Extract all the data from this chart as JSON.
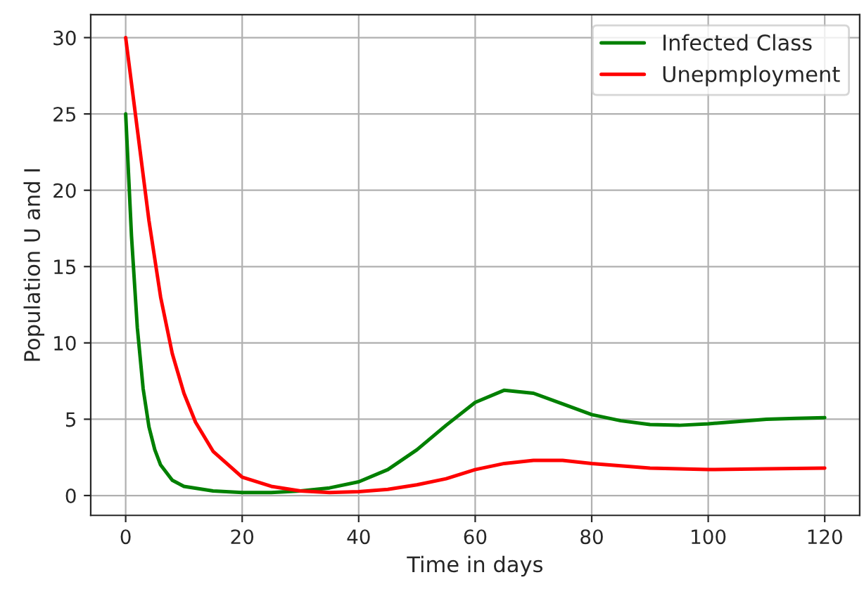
{
  "chart_data": {
    "type": "line",
    "xlabel": "Time in days",
    "ylabel": "Population U and I",
    "xlim": [
      -6,
      126
    ],
    "ylim": [
      -1.3,
      31.5
    ],
    "xticks": [
      0,
      20,
      40,
      60,
      80,
      100,
      120
    ],
    "yticks": [
      0,
      5,
      10,
      15,
      20,
      25,
      30
    ],
    "grid": true,
    "legend": "top right",
    "line_style": "solid",
    "series": [
      {
        "name": "Infected Class",
        "color": "#008000",
        "x": [
          0,
          1,
          2,
          3,
          4,
          5,
          6,
          8,
          10,
          15,
          20,
          25,
          30,
          35,
          40,
          45,
          50,
          55,
          60,
          65,
          70,
          75,
          80,
          85,
          90,
          95,
          100,
          105,
          110,
          115,
          120
        ],
        "values": [
          25,
          17,
          11,
          7,
          4.5,
          3,
          2,
          1,
          0.6,
          0.3,
          0.2,
          0.2,
          0.3,
          0.5,
          0.9,
          1.7,
          3,
          4.6,
          6.1,
          6.9,
          6.7,
          6,
          5.3,
          4.9,
          4.65,
          4.6,
          4.7,
          4.85,
          5,
          5.05,
          5.1
        ]
      },
      {
        "name": "Unepmployment",
        "color": "#ff0000",
        "x": [
          0,
          2,
          4,
          6,
          8,
          10,
          12,
          15,
          20,
          25,
          30,
          35,
          40,
          45,
          50,
          55,
          60,
          65,
          70,
          75,
          80,
          90,
          100,
          110,
          120
        ],
        "values": [
          30,
          24,
          18,
          13,
          9.3,
          6.7,
          4.8,
          2.9,
          1.2,
          0.6,
          0.3,
          0.2,
          0.25,
          0.4,
          0.7,
          1.1,
          1.7,
          2.1,
          2.3,
          2.3,
          2.1,
          1.8,
          1.7,
          1.75,
          1.8
        ]
      }
    ]
  }
}
